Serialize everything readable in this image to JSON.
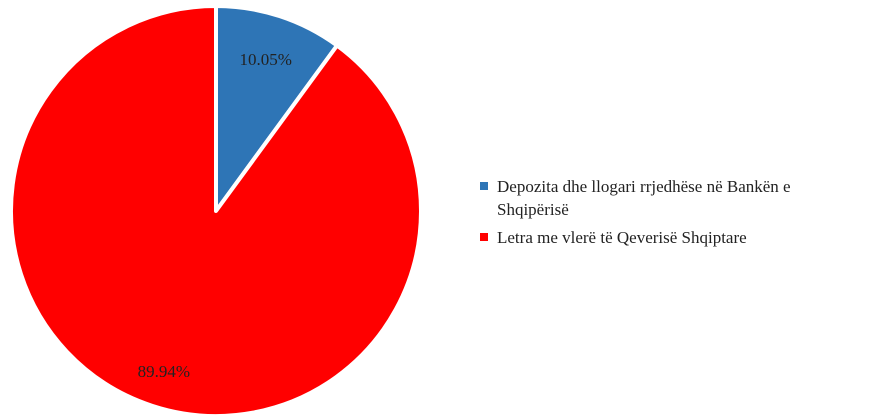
{
  "chart_data": {
    "type": "pie",
    "title": "",
    "categories": [
      "Depozita dhe llogari rrjedhëse në Bankën e Shqipërisë",
      "Letra me vlerë të Qeverisë Shqiptare"
    ],
    "values": [
      10.05,
      89.94
    ],
    "labels": [
      "10.05%",
      "89.94%"
    ],
    "colors": [
      "#2E75B6",
      "#FF0000"
    ],
    "legend_position": "right"
  }
}
